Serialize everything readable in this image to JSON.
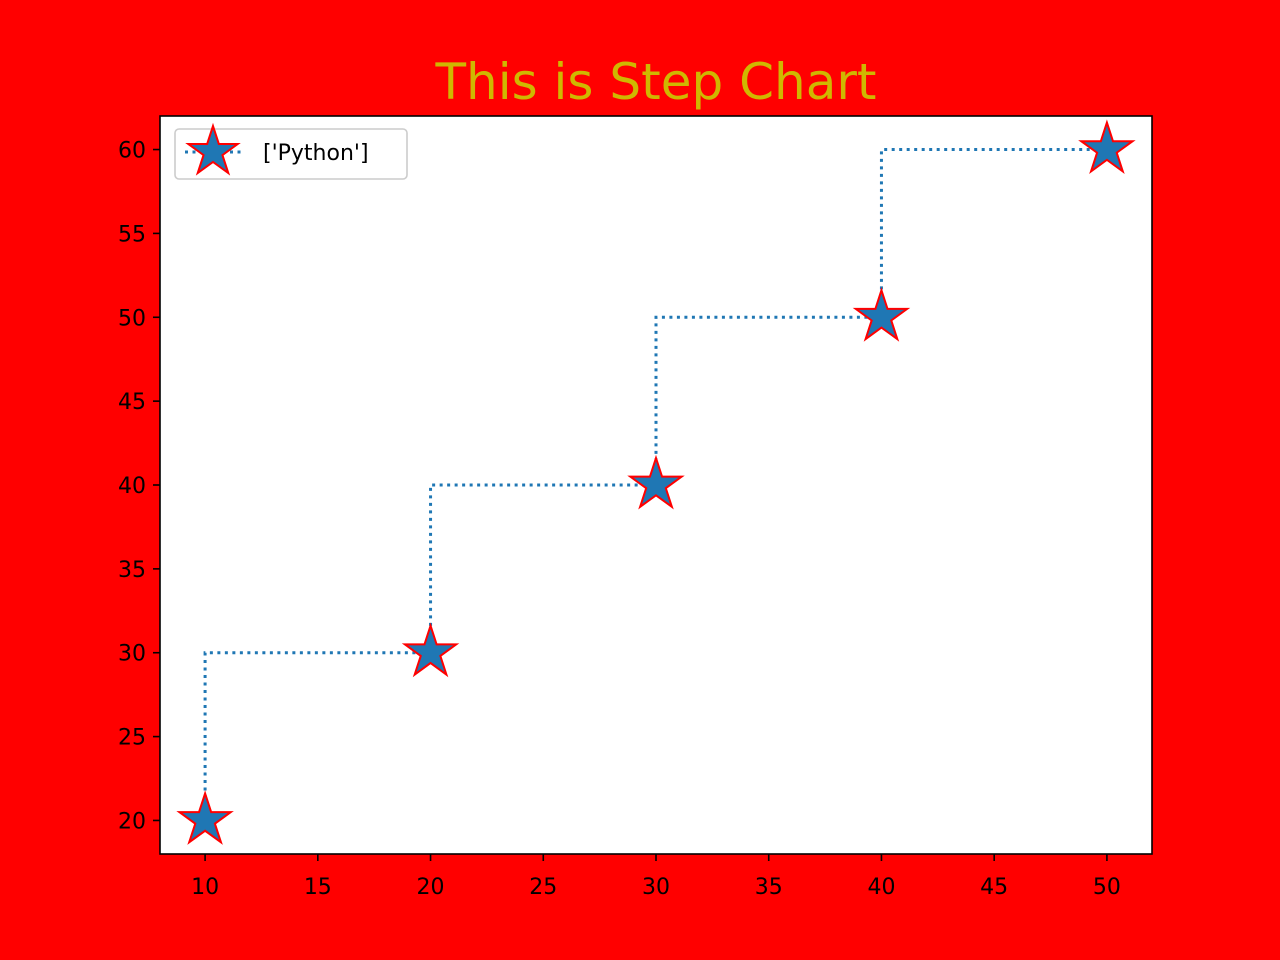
{
  "chart_data": {
    "type": "line",
    "title": "This is Step Chart",
    "xlabel": "",
    "ylabel": "",
    "step": "pre",
    "line_style": "dotted",
    "marker": "star",
    "x": [
      10,
      20,
      30,
      40,
      50
    ],
    "series": [
      {
        "name": "['Python']",
        "values": [
          20,
          30,
          40,
          50,
          60
        ]
      }
    ],
    "xlim": [
      8,
      52
    ],
    "ylim": [
      18,
      62
    ],
    "x_ticks": [
      10,
      15,
      20,
      25,
      30,
      35,
      40,
      45,
      50
    ],
    "y_ticks": [
      20,
      25,
      30,
      35,
      40,
      45,
      50,
      55,
      60
    ],
    "grid": false,
    "legend": "upper-left"
  },
  "colors": {
    "figure_background": "#ff0000",
    "plot_background": "#ffffff",
    "title": "#cfb800",
    "series": "#1f77b4",
    "marker_edge": "#ff0000"
  }
}
